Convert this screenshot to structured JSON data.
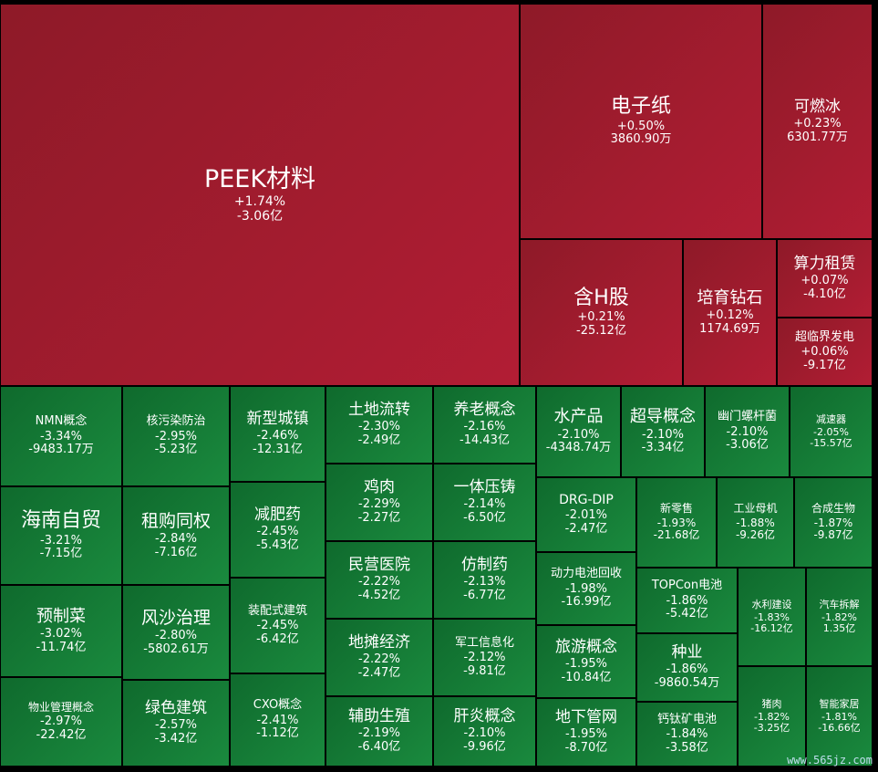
{
  "chart_data": {
    "type": "treemap",
    "colors": {
      "up": "#a81c30",
      "down": "#167a36"
    },
    "items": [
      {
        "name": "PEEK材料",
        "change": "+1.74%",
        "amount": "-3.06亿"
      },
      {
        "name": "电子纸",
        "change": "+0.50%",
        "amount": "3860.90万"
      },
      {
        "name": "可燃冰",
        "change": "+0.23%",
        "amount": "6301.77万"
      },
      {
        "name": "含H股",
        "change": "+0.21%",
        "amount": "-25.12亿"
      },
      {
        "name": "培育钻石",
        "change": "+0.12%",
        "amount": "1174.69万"
      },
      {
        "name": "算力租赁",
        "change": "+0.07%",
        "amount": "-4.10亿"
      },
      {
        "name": "超临界发电",
        "change": "+0.06%",
        "amount": "-9.17亿"
      },
      {
        "name": "NMN概念",
        "change": "-3.34%",
        "amount": "-9483.17万"
      },
      {
        "name": "核污染防治",
        "change": "-2.95%",
        "amount": "-5.23亿"
      },
      {
        "name": "新型城镇",
        "change": "-2.46%",
        "amount": "-12.31亿"
      },
      {
        "name": "土地流转",
        "change": "-2.30%",
        "amount": "-2.49亿"
      },
      {
        "name": "养老概念",
        "change": "-2.16%",
        "amount": "-14.43亿"
      },
      {
        "name": "水产品",
        "change": "-2.10%",
        "amount": "-4348.74万"
      },
      {
        "name": "超导概念",
        "change": "-2.10%",
        "amount": "-3.34亿"
      },
      {
        "name": "幽门螺杆菌",
        "change": "-2.10%",
        "amount": "-3.06亿"
      },
      {
        "name": "减速器",
        "change": "-2.05%",
        "amount": "-15.57亿"
      },
      {
        "name": "海南自贸",
        "change": "-3.21%",
        "amount": "-7.15亿"
      },
      {
        "name": "租购同权",
        "change": "-2.84%",
        "amount": "-7.16亿"
      },
      {
        "name": "减肥药",
        "change": "-2.45%",
        "amount": "-5.43亿"
      },
      {
        "name": "鸡肉",
        "change": "-2.29%",
        "amount": "-2.27亿"
      },
      {
        "name": "一体压铸",
        "change": "-2.14%",
        "amount": "-6.50亿"
      },
      {
        "name": "DRG-DIP",
        "change": "-2.01%",
        "amount": "-2.47亿"
      },
      {
        "name": "新零售",
        "change": "-1.93%",
        "amount": "-21.68亿"
      },
      {
        "name": "工业母机",
        "change": "-1.88%",
        "amount": "-9.26亿"
      },
      {
        "name": "合成生物",
        "change": "-1.87%",
        "amount": "-9.87亿"
      },
      {
        "name": "民营医院",
        "change": "-2.22%",
        "amount": "-4.52亿"
      },
      {
        "name": "仿制药",
        "change": "-2.13%",
        "amount": "-6.77亿"
      },
      {
        "name": "动力电池回收",
        "change": "-1.98%",
        "amount": "-16.99亿"
      },
      {
        "name": "TOPCon电池",
        "change": "-1.86%",
        "amount": "-5.42亿"
      },
      {
        "name": "预制菜",
        "change": "-3.02%",
        "amount": "-11.74亿"
      },
      {
        "name": "风沙治理",
        "change": "-2.80%",
        "amount": "-5802.61万"
      },
      {
        "name": "装配式建筑",
        "change": "-2.45%",
        "amount": "-6.42亿"
      },
      {
        "name": "水利建设",
        "change": "-1.83%",
        "amount": "-16.12亿"
      },
      {
        "name": "汽车拆解",
        "change": "-1.82%",
        "amount": "1.35亿"
      },
      {
        "name": "地摊经济",
        "change": "-2.22%",
        "amount": "-2.47亿"
      },
      {
        "name": "军工信息化",
        "change": "-2.12%",
        "amount": "-9.81亿"
      },
      {
        "name": "旅游概念",
        "change": "-1.95%",
        "amount": "-10.84亿"
      },
      {
        "name": "种业",
        "change": "-1.86%",
        "amount": "-9860.54万"
      },
      {
        "name": "物业管理概念",
        "change": "-2.97%",
        "amount": "-22.42亿"
      },
      {
        "name": "绿色建筑",
        "change": "-2.57%",
        "amount": "-3.42亿"
      },
      {
        "name": "CXO概念",
        "change": "-2.41%",
        "amount": "-1.12亿"
      },
      {
        "name": "辅助生殖",
        "change": "-2.19%",
        "amount": "-6.40亿"
      },
      {
        "name": "肝炎概念",
        "change": "-2.10%",
        "amount": "-9.96亿"
      },
      {
        "name": "地下管网",
        "change": "-1.95%",
        "amount": "-8.70亿"
      },
      {
        "name": "钙钛矿电池",
        "change": "-1.84%",
        "amount": "-3.58亿"
      },
      {
        "name": "猪肉",
        "change": "-1.82%",
        "amount": "-3.25亿"
      },
      {
        "name": "智能家居",
        "change": "-1.81%",
        "amount": "-16.66亿"
      }
    ]
  },
  "watermark": "www.565jz.com"
}
